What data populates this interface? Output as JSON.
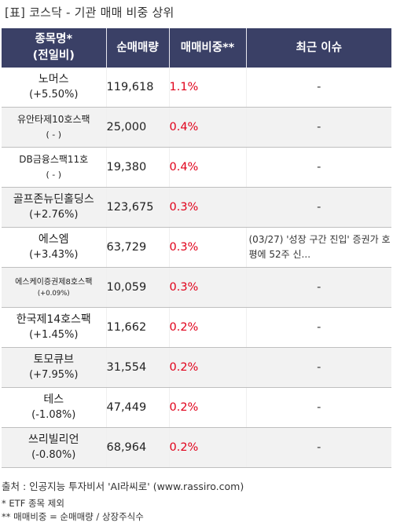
{
  "title": "[표] 코스닥 - 기관 매매 비중 상위",
  "headers": {
    "name_line1": "종목명*",
    "name_line2": "(전일비)",
    "volume": "순매매량",
    "ratio": "매매비중**",
    "issue": "최근 이슈"
  },
  "rows": [
    {
      "name": "노머스",
      "change": "(+5.50%)",
      "volume": "119,618",
      "ratio": "1.1%",
      "issue": "-"
    },
    {
      "name": "유안타제10호스팩",
      "change": "( - )",
      "volume": "25,000",
      "ratio": "0.4%",
      "issue": "-"
    },
    {
      "name": "DB금융스팩11호",
      "change": "( - )",
      "volume": "19,380",
      "ratio": "0.4%",
      "issue": "-"
    },
    {
      "name": "골프존뉴딘홀딩스",
      "change": "(+2.76%)",
      "volume": "123,675",
      "ratio": "0.3%",
      "issue": "-"
    },
    {
      "name": "에스엠",
      "change": "(+3.43%)",
      "volume": "63,729",
      "ratio": "0.3%",
      "issue": "(03/27) '성장 구간 진입' 증권가 호평에 52주 신..."
    },
    {
      "name": "에스케이증권제8호스팩",
      "change": "(+0.09%)",
      "volume": "10,059",
      "ratio": "0.3%",
      "issue": "-"
    },
    {
      "name": "한국제14호스팩",
      "change": "(+1.45%)",
      "volume": "11,662",
      "ratio": "0.2%",
      "issue": "-"
    },
    {
      "name": "토모큐브",
      "change": "(+7.95%)",
      "volume": "31,554",
      "ratio": "0.2%",
      "issue": "-"
    },
    {
      "name": "테스",
      "change": "(-1.08%)",
      "volume": "47,449",
      "ratio": "0.2%",
      "issue": "-"
    },
    {
      "name": "쓰리빌리언",
      "change": "(-0.80%)",
      "volume": "68,964",
      "ratio": "0.2%",
      "issue": "-"
    }
  ],
  "footer": {
    "source": "출처 : 인공지능 투자비서 'AI라씨로' (www.rassiro.com)",
    "note1": "* ETF 종목 제외",
    "note2": "** 매매비중 = 순매매량 / 상장주식수"
  },
  "colors": {
    "header_bg": "#3a4066",
    "ratio_text": "#e0001a",
    "row_shade": "#f2f2f2"
  }
}
